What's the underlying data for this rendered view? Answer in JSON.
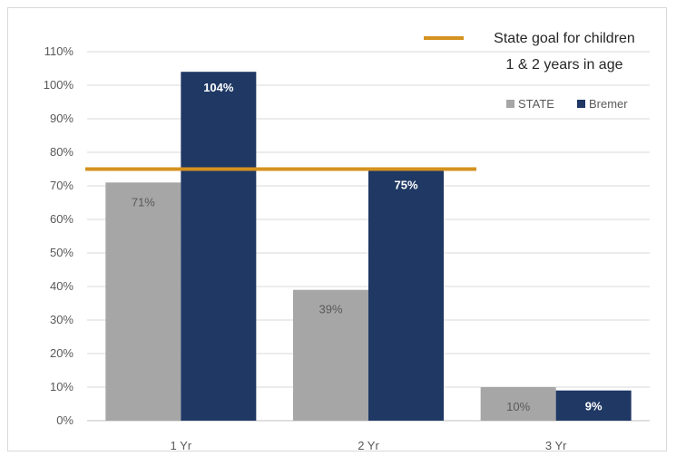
{
  "chart_data": {
    "type": "bar",
    "categories": [
      "1 Yr",
      "2 Yr",
      "3 Yr"
    ],
    "series": [
      {
        "name": "STATE",
        "values": [
          71,
          39,
          10
        ],
        "labels": [
          "71%",
          "39%",
          "10%"
        ],
        "color": "#a6a6a6"
      },
      {
        "name": "Bremer",
        "values": [
          104,
          75,
          9
        ],
        "labels": [
          "104%",
          "75%",
          "9%"
        ],
        "color": "#1f3864"
      }
    ],
    "ylim": [
      0,
      110
    ],
    "ytick_step": 10,
    "ytick_suffix": "%",
    "grid": true,
    "legend_position": "top-right",
    "goal_line": {
      "value": 75,
      "color": "#d4921f",
      "label_line1": "State goal for children",
      "label_line2": "1 & 2 years in age"
    }
  }
}
